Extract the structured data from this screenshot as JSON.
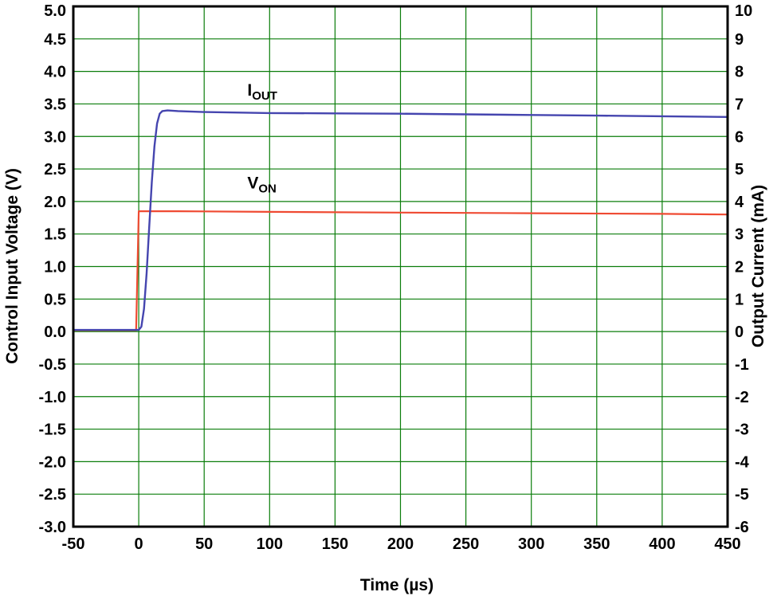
{
  "figure": {
    "title": "",
    "background": "#ffffff",
    "border_color": "#000000",
    "grid_color": "#0a7d0a"
  },
  "chart_data": {
    "type": "line",
    "title": "",
    "x_axis": {
      "label": "Time (µs)",
      "min": -50,
      "max": 450,
      "tick_values": [
        -50,
        0,
        50,
        100,
        150,
        200,
        250,
        300,
        350,
        400,
        450
      ],
      "tick_labels": [
        "-50",
        "0",
        "50",
        "100",
        "150",
        "200",
        "250",
        "300",
        "350",
        "400",
        "450"
      ]
    },
    "y_axis_left": {
      "label": "Control Input Voltage (V)",
      "min": -3.0,
      "max": 5.0,
      "tick_values": [
        5.0,
        4.5,
        4.0,
        3.5,
        3.0,
        2.5,
        2.0,
        1.5,
        1.0,
        0.5,
        0.0,
        -0.5,
        -1.0,
        -1.5,
        -2.0,
        -2.5,
        -3.0
      ],
      "tick_labels": [
        "5.0",
        "4.5",
        "4.0",
        "3.5",
        "3.0",
        "2.5",
        "2.0",
        "1.5",
        "1.0",
        "0.5",
        "0.0",
        "-0.5",
        "-1.0",
        "-1.5",
        "-2.0",
        "-2.5",
        "-3.0"
      ]
    },
    "y_axis_right": {
      "label": "Output Current (mA)",
      "min": -6,
      "max": 10,
      "tick_values": [
        10,
        9,
        8,
        7,
        6,
        5,
        4,
        3,
        2,
        1,
        0,
        -1,
        -2,
        -3,
        -4,
        -5,
        -6
      ],
      "tick_labels": [
        "10",
        "9",
        "8",
        "7",
        "6",
        "5",
        "4",
        "3",
        "2",
        "1",
        "0",
        "-1",
        "-2",
        "-3",
        "-4",
        "-5",
        "-6"
      ]
    },
    "grid": {
      "x_step": 50,
      "y_step": 0.5,
      "color": "#0a7d0a",
      "on": true
    },
    "legend_position": "inline-annotations",
    "series": [
      {
        "name": "IOUT",
        "axis": "right",
        "color": "#4545af",
        "width": 2.4,
        "points": [
          [
            -50,
            0.05
          ],
          [
            -10,
            0.05
          ],
          [
            0,
            0.05
          ],
          [
            2,
            0.15
          ],
          [
            4,
            0.7
          ],
          [
            6,
            1.8
          ],
          [
            8,
            3.2
          ],
          [
            10,
            4.6
          ],
          [
            12,
            5.7
          ],
          [
            14,
            6.4
          ],
          [
            16,
            6.7
          ],
          [
            18,
            6.78
          ],
          [
            22,
            6.8
          ],
          [
            30,
            6.78
          ],
          [
            50,
            6.75
          ],
          [
            100,
            6.72
          ],
          [
            150,
            6.71
          ],
          [
            200,
            6.7
          ],
          [
            250,
            6.68
          ],
          [
            300,
            6.66
          ],
          [
            350,
            6.64
          ],
          [
            400,
            6.62
          ],
          [
            450,
            6.6
          ]
        ]
      },
      {
        "name": "VON",
        "axis": "left",
        "color": "#ef4a32",
        "width": 2.2,
        "points": [
          [
            -50,
            0.02
          ],
          [
            -2,
            0.02
          ],
          [
            0,
            1.85
          ],
          [
            30,
            1.85
          ],
          [
            100,
            1.84
          ],
          [
            200,
            1.83
          ],
          [
            300,
            1.82
          ],
          [
            400,
            1.81
          ],
          [
            450,
            1.8
          ]
        ]
      }
    ],
    "annotations": [
      {
        "main": "I",
        "sub": "OUT",
        "x": 83,
        "y_left": 3.63
      },
      {
        "main": "V",
        "sub": "ON",
        "x": 83,
        "y_left": 2.2
      }
    ]
  }
}
